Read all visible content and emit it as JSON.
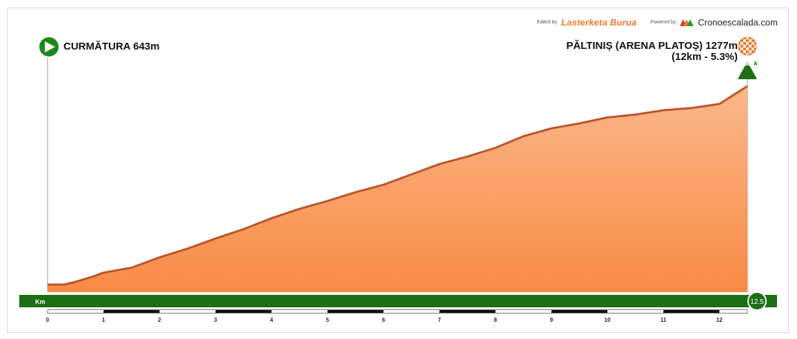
{
  "credits": {
    "edited_by": "Edited by",
    "brand": "Lasterketa Burua",
    "powered_by": "Powered by",
    "site": "Cronoescalada.com"
  },
  "start": {
    "label": "CURMĂTURA 643m",
    "icon": "play-icon"
  },
  "finish": {
    "label": "PĂLTINIȘ (ARENA PLATOȘ) 1277m",
    "summary": "(12km - 5.3%)",
    "icon": "checkered-flag-icon",
    "summit_icon": "mountain-summit-icon",
    "summit_mark": "A"
  },
  "colors": {
    "profile_fill_top": "#fbb78a",
    "profile_fill_bottom": "#f88a45",
    "profile_edge": "#b9542a",
    "km_bar": "#1e6e16",
    "start_marker": "#1a8a1a",
    "summit_marker": "#1e6e16",
    "checker": "#f0772a",
    "brand": "#f0772a"
  },
  "chart_data": {
    "type": "area",
    "title": "",
    "xlabel": "Km",
    "ylabel": "",
    "xlim": [
      0,
      12.5
    ],
    "ylim": [
      643,
      1277
    ],
    "x": [
      0,
      0.3,
      0.5,
      0.8,
      1.0,
      1.5,
      2.0,
      2.5,
      3.0,
      3.5,
      4.0,
      4.5,
      5.0,
      5.5,
      6.0,
      6.5,
      7.0,
      7.5,
      8.0,
      8.5,
      9.0,
      9.5,
      10.0,
      10.5,
      11.0,
      11.5,
      12.0,
      12.5
    ],
    "y": [
      643,
      643,
      652,
      668,
      681,
      697,
      730,
      758,
      790,
      820,
      855,
      885,
      910,
      938,
      962,
      995,
      1028,
      1052,
      1080,
      1117,
      1142,
      1158,
      1177,
      1186,
      1200,
      1207,
      1220,
      1277
    ],
    "x_ticks": [
      "0",
      "1",
      "2",
      "3",
      "4",
      "5",
      "6",
      "7",
      "8",
      "9",
      "10",
      "11",
      "12"
    ],
    "end_km_label": "12.5",
    "axis_label": "Km"
  }
}
